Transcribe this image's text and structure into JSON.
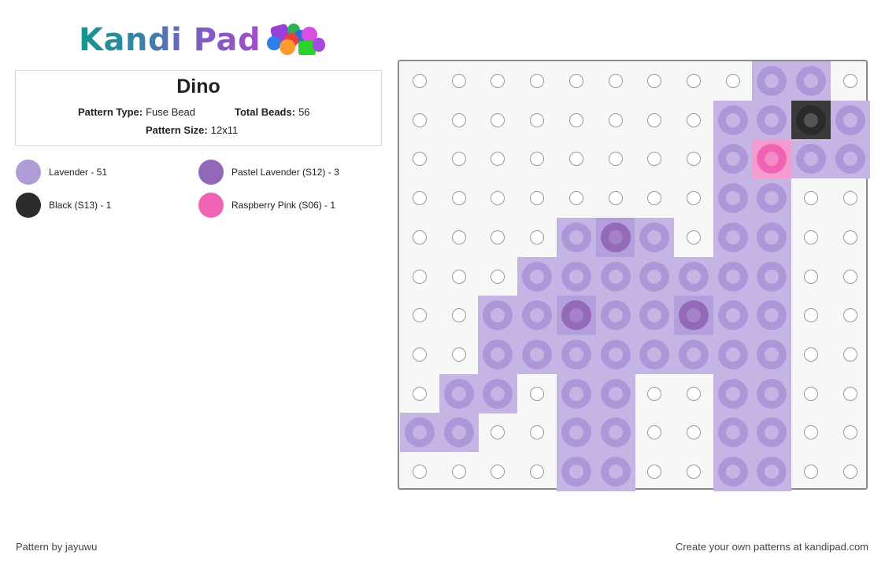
{
  "logo": {
    "text": "Kandi Pad"
  },
  "pattern": {
    "title": "Dino",
    "type_label": "Pattern Type:",
    "type_value": "Fuse Bead",
    "beads_label": "Total Beads:",
    "beads_value": "56",
    "size_label": "Pattern Size:",
    "size_value": "12x11"
  },
  "legend": [
    {
      "label": "Lavender - 51",
      "color": "#b09bd9"
    },
    {
      "label": "Pastel Lavender (S12) - 3",
      "color": "#9266b8"
    },
    {
      "label": "Black (S13) - 1",
      "color": "#2b2b2b"
    },
    {
      "label": "Raspberry Pink (S06) - 1",
      "color": "#f062b3"
    }
  ],
  "grid": {
    "cols": 12,
    "rows": 11,
    "palette": {
      "L": {
        "name": "Lavender",
        "bg": "#c4b5e4",
        "ring": "#ad97d9",
        "hole": "#c4b5e4"
      },
      "P": {
        "name": "Pastel Lavender",
        "bg": "#b39fdb",
        "ring": "#9469ba",
        "hole": "#a682cb"
      },
      "B": {
        "name": "Black",
        "bg": "#3a3a3a",
        "ring": "#2a2a2a",
        "hole": "#555555"
      },
      "R": {
        "name": "Raspberry Pink",
        "bg": "#f49ccf",
        "ring": "#f062b3",
        "hole": "#f48ac8"
      }
    },
    "cells": [
      "000000000LL0",
      "00000000LLBL",
      "00000000LRLL",
      "00000000LL00",
      "0000LPL0LL00",
      "000LLLLLLL00",
      "00LLPLLPLL00",
      "00LLLLLLLL00",
      "0LL0LL00LL00",
      "LL00LL00LL00",
      "0000LL00LL00"
    ]
  },
  "footer": {
    "credit": "Pattern by jayuwu",
    "cta": "Create your own patterns at kandipad.com"
  }
}
